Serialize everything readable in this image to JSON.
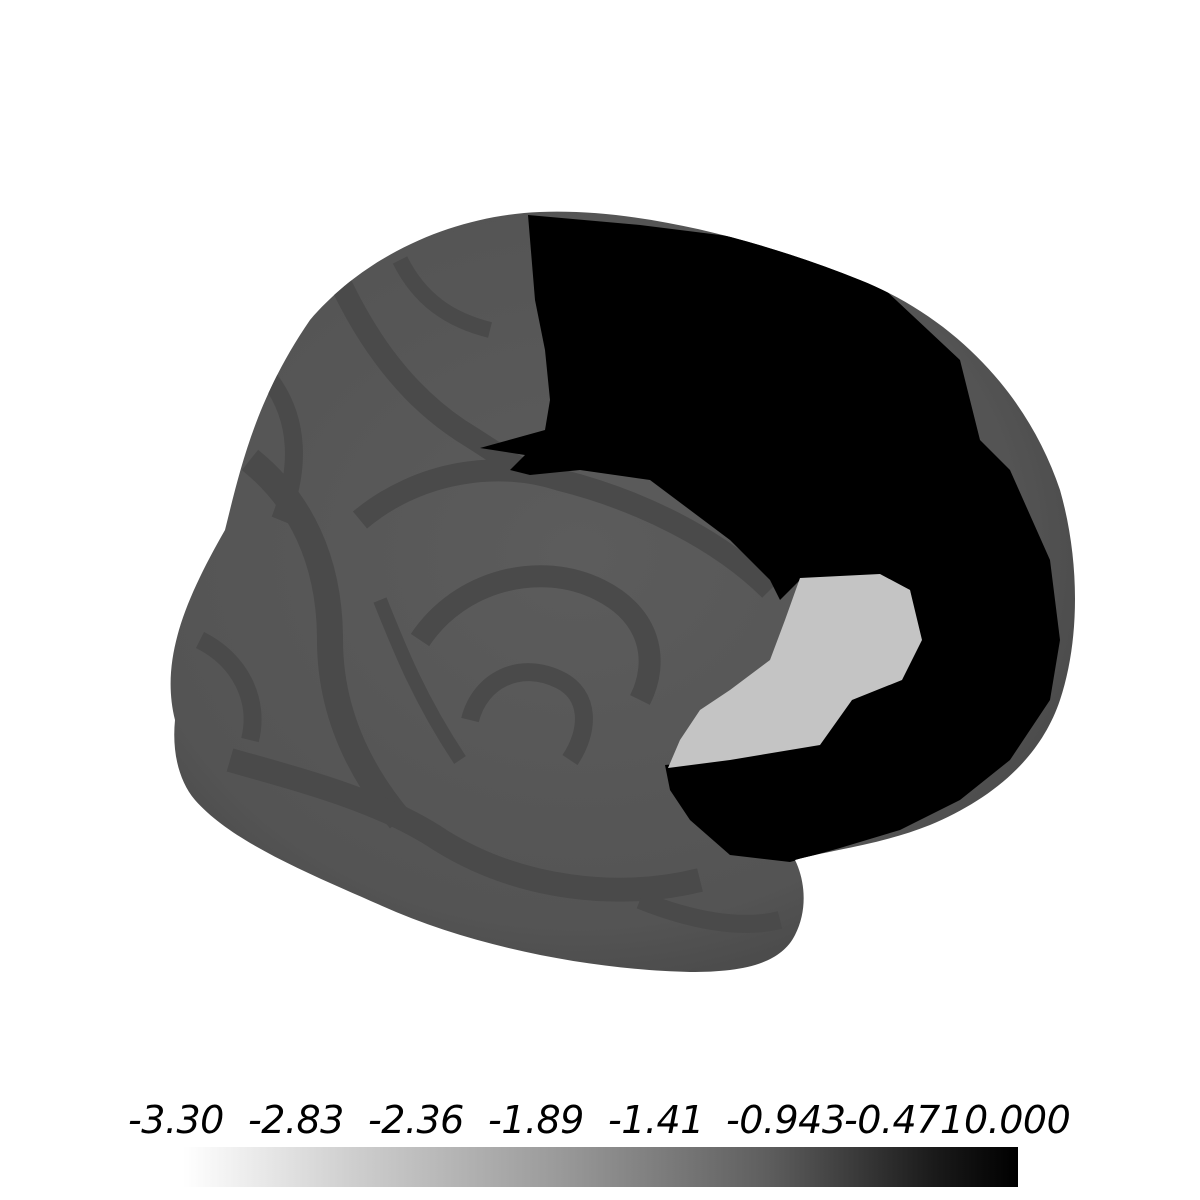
{
  "figure": {
    "subject": "inflated brain hemisphere, medial view",
    "colors": {
      "surface_dark": "#4a4a4a",
      "surface_light": "#5e5e5e",
      "overlay_black": "#000000",
      "overlay_light": "#c4c4c4",
      "background": "#ffffff"
    }
  },
  "colorbar": {
    "ticks": [
      "-3.30",
      "-2.83",
      "-2.36",
      "-1.89",
      "-1.41",
      "-0.943",
      "-0.471",
      "0.000"
    ],
    "min": -3.3,
    "max": 0.0,
    "colormap": "white-to-black"
  }
}
